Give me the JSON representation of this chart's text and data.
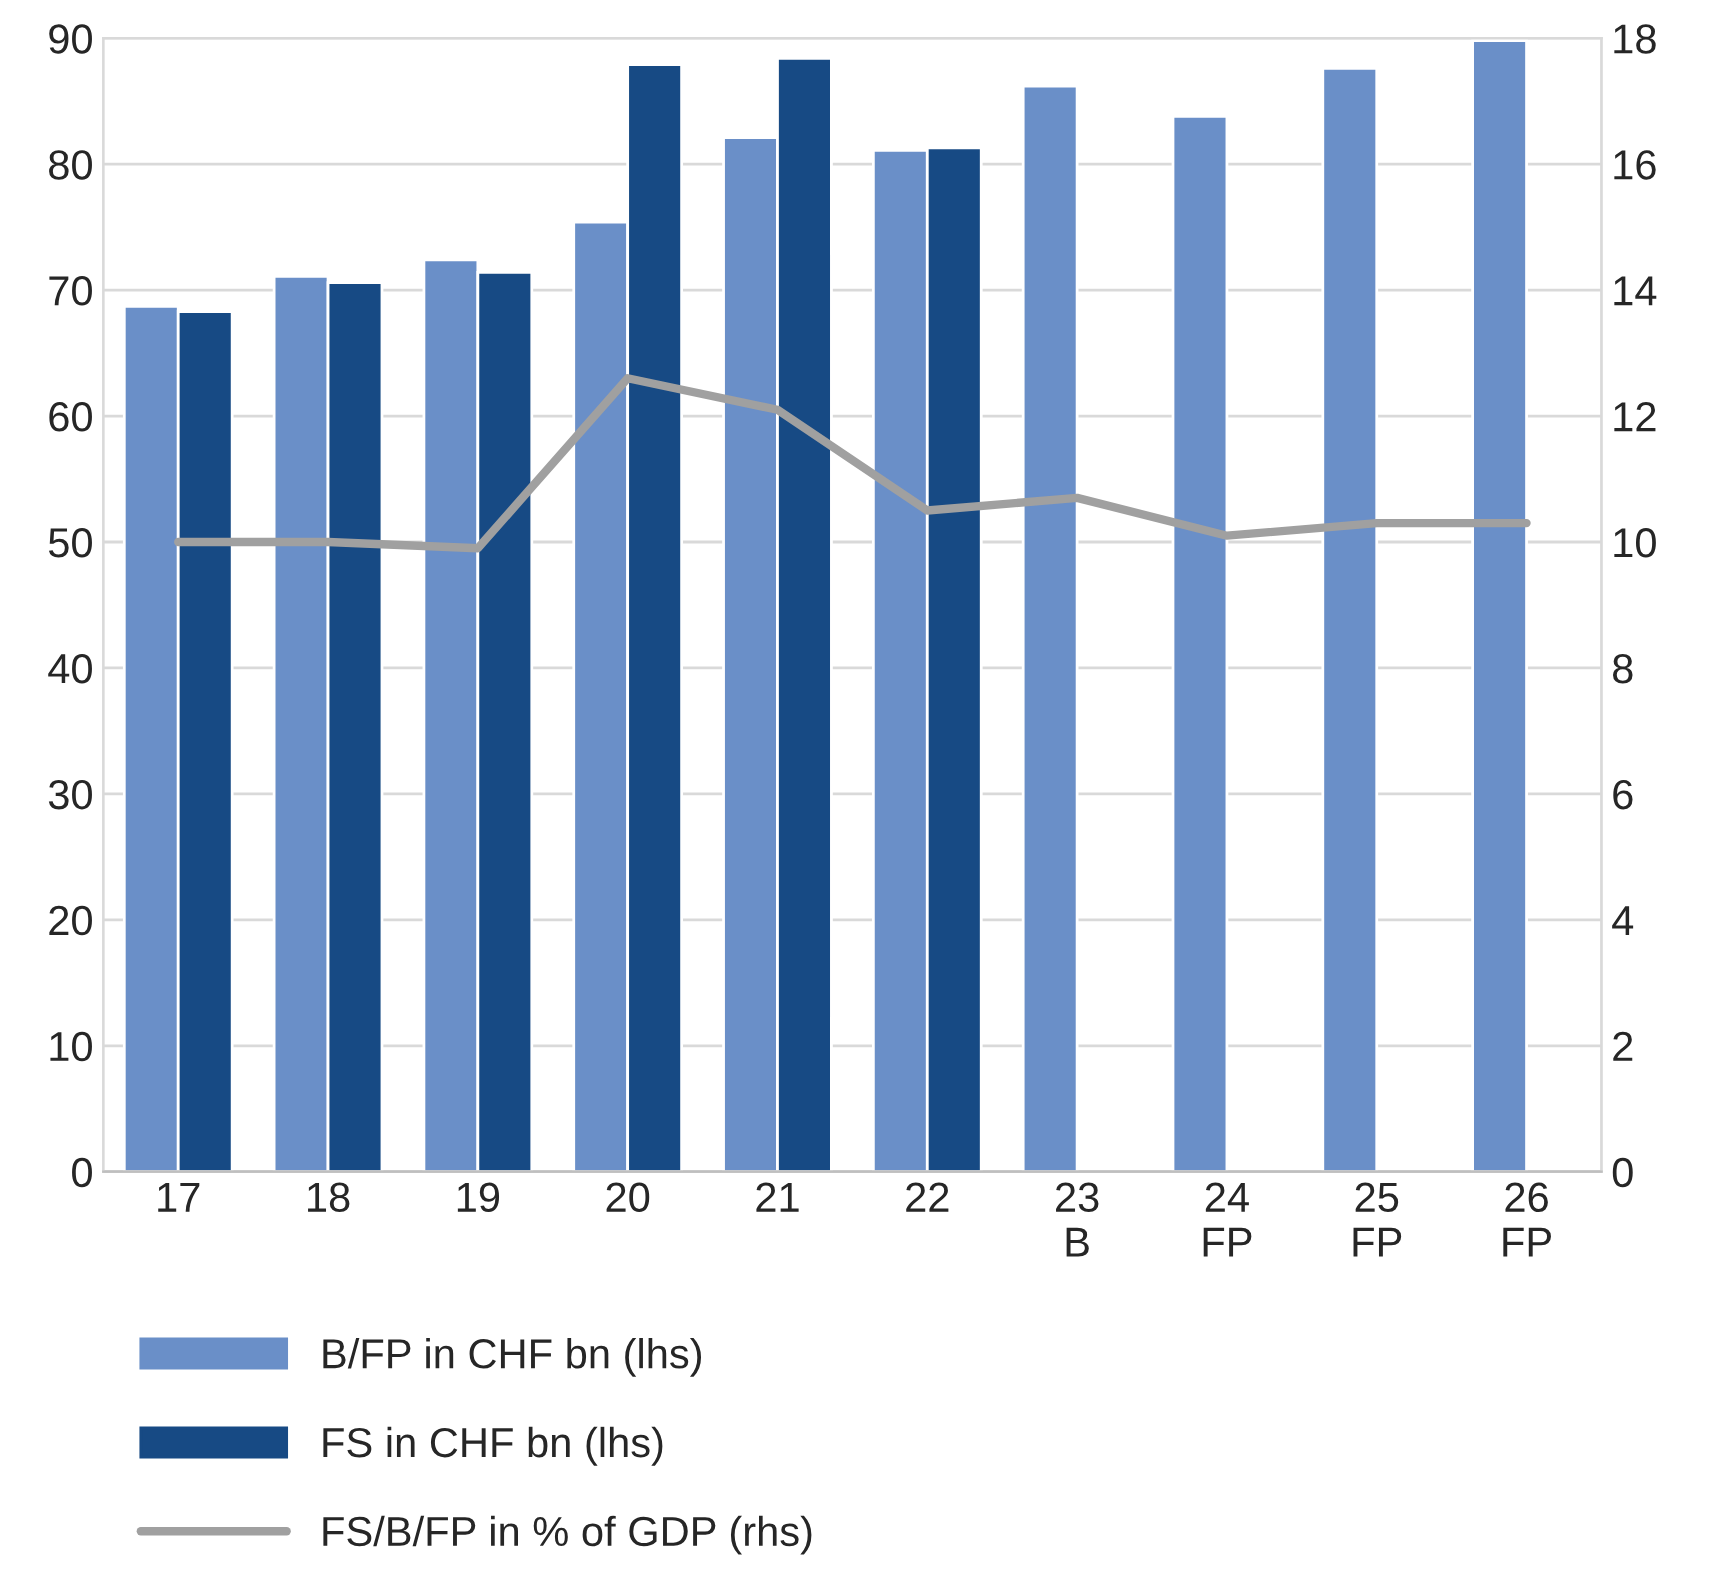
{
  "chart_data": {
    "type": "bar",
    "categories": [
      "17",
      "18",
      "19",
      "20",
      "21",
      "22",
      "23\nB",
      "24\nFP",
      "25\nFP",
      "26\nFP"
    ],
    "series": [
      {
        "name": "B/FP in CHF bn (lhs)",
        "color": "#6a8fc8",
        "values": [
          68.7,
          71.1,
          72.4,
          75.4,
          82.1,
          81.1,
          86.2,
          83.8,
          87.6,
          89.8
        ]
      },
      {
        "name": "FS in CHF bn (lhs)",
        "color": "#174a84",
        "values": [
          68.3,
          70.6,
          71.4,
          87.9,
          88.4,
          81.3,
          null,
          null,
          null,
          null
        ]
      },
      {
        "name": "FS/B/FP in % of GDP (rhs)",
        "color": "#a0a0a0",
        "type": "line",
        "axis": "y2",
        "values": [
          10.0,
          10.0,
          9.9,
          12.6,
          12.1,
          10.5,
          10.7,
          10.1,
          10.3,
          10.3
        ]
      }
    ],
    "ylim": [
      0,
      90
    ],
    "yticks": [
      0,
      10,
      20,
      30,
      40,
      50,
      60,
      70,
      80,
      90
    ],
    "y2lim": [
      0,
      18
    ],
    "y2ticks": [
      0,
      2,
      4,
      6,
      8,
      10,
      12,
      14,
      16,
      18
    ],
    "grid": "y",
    "legend": "bottom",
    "marker": "none",
    "line_style": "solid"
  }
}
